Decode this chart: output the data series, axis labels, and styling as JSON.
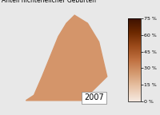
{
  "title": "Anteil nichtehelicher Geburten",
  "year_label": "2007",
  "colorbar_ticks": [
    0,
    15,
    30,
    45,
    60,
    75
  ],
  "colorbar_tick_labels": [
    "0 %",
    "15 %",
    "30 %",
    "45 %",
    "60 %",
    "75 %"
  ],
  "cmap_colors": [
    "#f5e8df",
    "#e8c4a8",
    "#d49a70",
    "#bf7040",
    "#9b4a1a",
    "#6b2800",
    "#3d1100"
  ],
  "vmin": 0,
  "vmax": 75,
  "background_map_color": "#b8cfe0",
  "background_outer_color": "#d0d0d0",
  "map_border_color": "#ffffff",
  "map_facecolor": "#c8a882",
  "title_fontsize": 5.5,
  "year_fontsize": 7,
  "colorbar_label_fontsize": 4.5,
  "fig_background": "#e8e8e8"
}
